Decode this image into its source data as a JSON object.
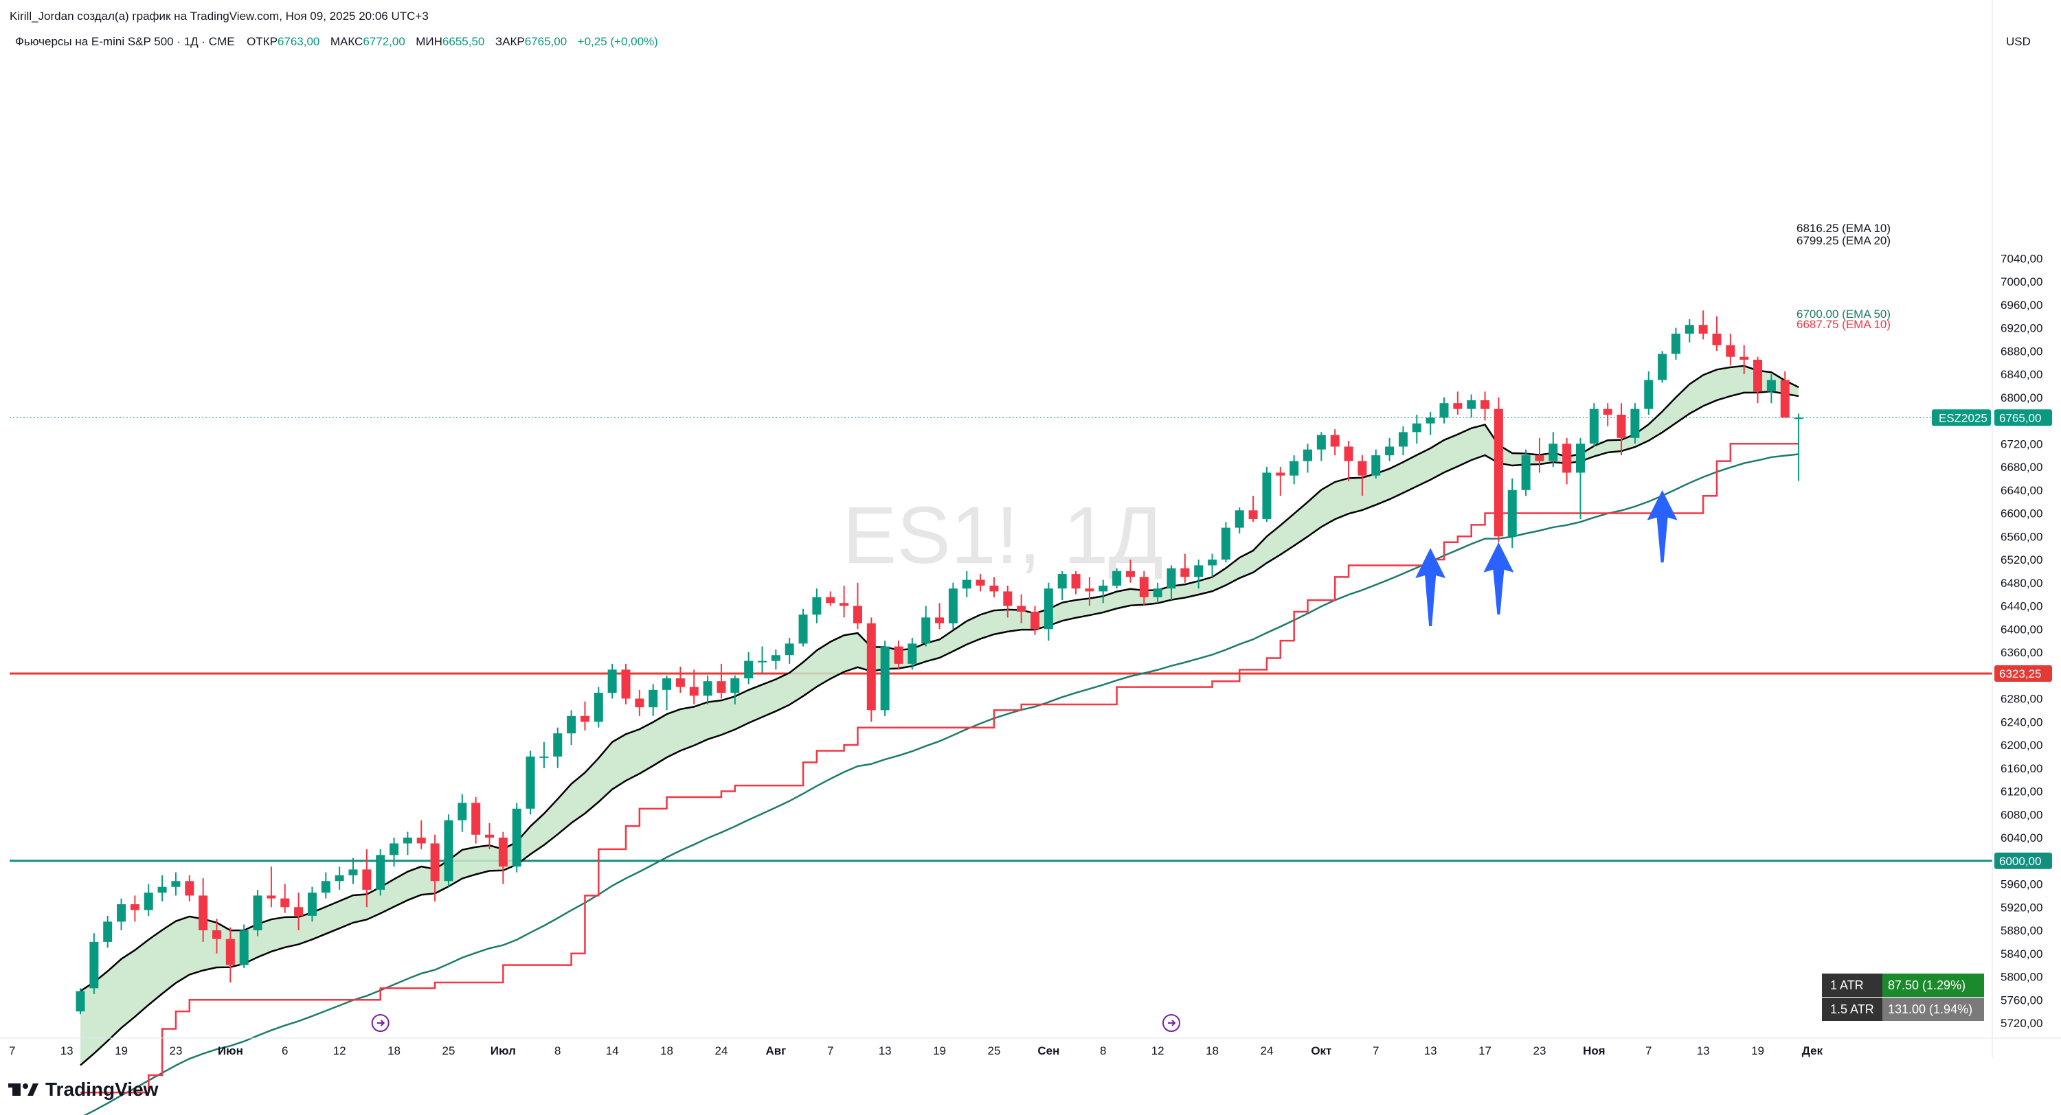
{
  "header": {
    "author_line": "Kirill_Jordan создал(а) график на TradingView.com, Ноя 09, 2025 20:06 UTC+3",
    "symbol_desc": "Фьючерсы на E-mini S&P 500 · 1Д · CME",
    "ohlc": [
      {
        "label": "ОТКР",
        "value": "6763,00"
      },
      {
        "label": "МАКС",
        "value": "6772,00"
      },
      {
        "label": "МИН",
        "value": "6655,50"
      },
      {
        "label": "ЗАКР",
        "value": "6765,00"
      }
    ],
    "change": "+0,25 (+0,00%)"
  },
  "watermark": "ES1!, 1Д",
  "brand": "TradingView",
  "currency": "USD",
  "colors": {
    "up": "#089981",
    "down": "#f23645",
    "ema10": "#000000",
    "ema20": "#000000",
    "ema50": "#1f7a6e",
    "stop": "#f23645",
    "cloud": "#c8e6c9",
    "level_red": "#e53935",
    "level_green": "#138f80",
    "arrow": "#2962ff",
    "event": "#7b1fa2"
  },
  "chart_data": {
    "type": "candlestick",
    "symbol": "ES1!",
    "interval": "1Д",
    "ylim": [
      5700,
      7060
    ],
    "y_ticks": [
      "7040,00",
      "7000,00",
      "6960,00",
      "6920,00",
      "6880,00",
      "6840,00",
      "6800,00",
      "6760,00",
      "6720,00",
      "6680,00",
      "6640,00",
      "6600,00",
      "6560,00",
      "6520,00",
      "6480,00",
      "6440,00",
      "6400,00",
      "6360,00",
      "6320,00",
      "6280,00",
      "6240,00",
      "6200,00",
      "6160,00",
      "6120,00",
      "6080,00",
      "6040,00",
      "6000,00",
      "5960,00",
      "5920,00",
      "5880,00",
      "5840,00",
      "5800,00",
      "5760,00",
      "5720,00"
    ],
    "x_ticks": [
      {
        "label": "7",
        "i": -5,
        "bold": false
      },
      {
        "label": "13",
        "i": -1,
        "bold": false
      },
      {
        "label": "19",
        "i": 3,
        "bold": false
      },
      {
        "label": "23",
        "i": 7,
        "bold": false
      },
      {
        "label": "Июн",
        "i": 11,
        "bold": true
      },
      {
        "label": "6",
        "i": 15,
        "bold": false
      },
      {
        "label": "12",
        "i": 19,
        "bold": false
      },
      {
        "label": "18",
        "i": 23,
        "bold": false
      },
      {
        "label": "25",
        "i": 27,
        "bold": false
      },
      {
        "label": "Июл",
        "i": 31,
        "bold": true
      },
      {
        "label": "8",
        "i": 35,
        "bold": false
      },
      {
        "label": "14",
        "i": 39,
        "bold": false
      },
      {
        "label": "18",
        "i": 43,
        "bold": false
      },
      {
        "label": "24",
        "i": 47,
        "bold": false
      },
      {
        "label": "Авг",
        "i": 51,
        "bold": true
      },
      {
        "label": "7",
        "i": 55,
        "bold": false
      },
      {
        "label": "13",
        "i": 59,
        "bold": false
      },
      {
        "label": "19",
        "i": 63,
        "bold": false
      },
      {
        "label": "25",
        "i": 67,
        "bold": false
      },
      {
        "label": "Сен",
        "i": 71,
        "bold": true
      },
      {
        "label": "8",
        "i": 75,
        "bold": false
      },
      {
        "label": "12",
        "i": 79,
        "bold": false
      },
      {
        "label": "18",
        "i": 83,
        "bold": false
      },
      {
        "label": "24",
        "i": 87,
        "bold": false
      },
      {
        "label": "Окт",
        "i": 91,
        "bold": true
      },
      {
        "label": "7",
        "i": 95,
        "bold": false
      },
      {
        "label": "13",
        "i": 99,
        "bold": false
      },
      {
        "label": "17",
        "i": 103,
        "bold": false
      },
      {
        "label": "23",
        "i": 107,
        "bold": false
      },
      {
        "label": "Ноя",
        "i": 111,
        "bold": true
      },
      {
        "label": "7",
        "i": 115,
        "bold": false
      },
      {
        "label": "13",
        "i": 119,
        "bold": false
      },
      {
        "label": "19",
        "i": 123,
        "bold": false
      },
      {
        "label": "Дек",
        "i": 127,
        "bold": true
      }
    ],
    "candles": [
      [
        5740,
        5780,
        5735,
        5775
      ],
      [
        5780,
        5875,
        5770,
        5860
      ],
      [
        5860,
        5905,
        5850,
        5895
      ],
      [
        5895,
        5935,
        5880,
        5925
      ],
      [
        5925,
        5940,
        5895,
        5915
      ],
      [
        5915,
        5960,
        5905,
        5945
      ],
      [
        5945,
        5975,
        5930,
        5955
      ],
      [
        5955,
        5980,
        5940,
        5965
      ],
      [
        5965,
        5975,
        5930,
        5940
      ],
      [
        5940,
        5970,
        5860,
        5880
      ],
      [
        5880,
        5900,
        5840,
        5865
      ],
      [
        5865,
        5885,
        5790,
        5820
      ],
      [
        5820,
        5890,
        5815,
        5880
      ],
      [
        5880,
        5950,
        5870,
        5940
      ],
      [
        5940,
        5990,
        5920,
        5935
      ],
      [
        5935,
        5960,
        5910,
        5920
      ],
      [
        5920,
        5945,
        5880,
        5905
      ],
      [
        5905,
        5955,
        5895,
        5945
      ],
      [
        5945,
        5980,
        5935,
        5965
      ],
      [
        5965,
        5990,
        5950,
        5975
      ],
      [
        5975,
        6005,
        5960,
        5985
      ],
      [
        5985,
        6020,
        5920,
        5950
      ],
      [
        5950,
        6020,
        5940,
        6010
      ],
      [
        6010,
        6040,
        5990,
        6030
      ],
      [
        6030,
        6050,
        6010,
        6040
      ],
      [
        6040,
        6070,
        6020,
        6030
      ],
      [
        6030,
        6045,
        5930,
        5965
      ],
      [
        5965,
        6080,
        5955,
        6070
      ],
      [
        6070,
        6115,
        6050,
        6100
      ],
      [
        6100,
        6110,
        6030,
        6045
      ],
      [
        6045,
        6065,
        6020,
        6040
      ],
      [
        6040,
        6050,
        5960,
        5990
      ],
      [
        5990,
        6100,
        5980,
        6090
      ],
      [
        6090,
        6190,
        6080,
        6180
      ],
      [
        6180,
        6205,
        6160,
        6180
      ],
      [
        6180,
        6230,
        6160,
        6220
      ],
      [
        6220,
        6260,
        6200,
        6250
      ],
      [
        6250,
        6275,
        6225,
        6240
      ],
      [
        6240,
        6300,
        6230,
        6290
      ],
      [
        6290,
        6340,
        6280,
        6330
      ],
      [
        6330,
        6340,
        6270,
        6280
      ],
      [
        6280,
        6295,
        6250,
        6265
      ],
      [
        6265,
        6305,
        6250,
        6295
      ],
      [
        6295,
        6320,
        6260,
        6315
      ],
      [
        6315,
        6335,
        6290,
        6300
      ],
      [
        6300,
        6330,
        6270,
        6285
      ],
      [
        6285,
        6320,
        6270,
        6310
      ],
      [
        6310,
        6340,
        6280,
        6290
      ],
      [
        6290,
        6320,
        6270,
        6315
      ],
      [
        6315,
        6360,
        6305,
        6345
      ],
      [
        6345,
        6370,
        6325,
        6345
      ],
      [
        6345,
        6365,
        6330,
        6355
      ],
      [
        6355,
        6385,
        6340,
        6375
      ],
      [
        6375,
        6435,
        6370,
        6425
      ],
      [
        6425,
        6470,
        6410,
        6455
      ],
      [
        6455,
        6465,
        6440,
        6445
      ],
      [
        6445,
        6475,
        6420,
        6440
      ],
      [
        6440,
        6480,
        6400,
        6410
      ],
      [
        6410,
        6420,
        6240,
        6260
      ],
      [
        6260,
        6380,
        6250,
        6370
      ],
      [
        6370,
        6380,
        6330,
        6340
      ],
      [
        6340,
        6385,
        6330,
        6375
      ],
      [
        6375,
        6440,
        6370,
        6420
      ],
      [
        6420,
        6445,
        6400,
        6410
      ],
      [
        6410,
        6480,
        6400,
        6470
      ],
      [
        6470,
        6500,
        6455,
        6485
      ],
      [
        6485,
        6495,
        6465,
        6475
      ],
      [
        6475,
        6490,
        6455,
        6465
      ],
      [
        6465,
        6475,
        6420,
        6440
      ],
      [
        6440,
        6460,
        6410,
        6430
      ],
      [
        6430,
        6440,
        6390,
        6400
      ],
      [
        6400,
        6480,
        6380,
        6470
      ],
      [
        6470,
        6500,
        6450,
        6495
      ],
      [
        6495,
        6500,
        6460,
        6470
      ],
      [
        6470,
        6490,
        6440,
        6465
      ],
      [
        6465,
        6485,
        6445,
        6475
      ],
      [
        6475,
        6505,
        6470,
        6500
      ],
      [
        6500,
        6520,
        6480,
        6490
      ],
      [
        6490,
        6500,
        6440,
        6455
      ],
      [
        6455,
        6480,
        6445,
        6470
      ],
      [
        6470,
        6510,
        6450,
        6505
      ],
      [
        6505,
        6530,
        6480,
        6490
      ],
      [
        6490,
        6520,
        6470,
        6510
      ],
      [
        6510,
        6530,
        6490,
        6520
      ],
      [
        6520,
        6585,
        6515,
        6575
      ],
      [
        6575,
        6610,
        6565,
        6605
      ],
      [
        6605,
        6630,
        6585,
        6590
      ],
      [
        6590,
        6680,
        6585,
        6670
      ],
      [
        6670,
        6680,
        6630,
        6665
      ],
      [
        6665,
        6700,
        6650,
        6690
      ],
      [
        6690,
        6720,
        6670,
        6710
      ],
      [
        6710,
        6740,
        6690,
        6735
      ],
      [
        6735,
        6745,
        6700,
        6715
      ],
      [
        6715,
        6725,
        6655,
        6690
      ],
      [
        6690,
        6700,
        6630,
        6665
      ],
      [
        6665,
        6710,
        6660,
        6700
      ],
      [
        6700,
        6730,
        6690,
        6715
      ],
      [
        6715,
        6750,
        6700,
        6740
      ],
      [
        6740,
        6770,
        6720,
        6755
      ],
      [
        6755,
        6775,
        6735,
        6765
      ],
      [
        6765,
        6800,
        6755,
        6790
      ],
      [
        6790,
        6810,
        6770,
        6780
      ],
      [
        6780,
        6805,
        6765,
        6795
      ],
      [
        6795,
        6810,
        6760,
        6780
      ],
      [
        6780,
        6800,
        6550,
        6560
      ],
      [
        6560,
        6660,
        6540,
        6640
      ],
      [
        6640,
        6710,
        6630,
        6700
      ],
      [
        6700,
        6730,
        6670,
        6690
      ],
      [
        6690,
        6740,
        6680,
        6720
      ],
      [
        6720,
        6730,
        6650,
        6670
      ],
      [
        6670,
        6730,
        6590,
        6720
      ],
      [
        6720,
        6790,
        6715,
        6780
      ],
      [
        6780,
        6790,
        6750,
        6770
      ],
      [
        6770,
        6790,
        6700,
        6730
      ],
      [
        6730,
        6790,
        6720,
        6780
      ],
      [
        6780,
        6845,
        6770,
        6830
      ],
      [
        6830,
        6880,
        6825,
        6875
      ],
      [
        6875,
        6920,
        6865,
        6910
      ],
      [
        6910,
        6935,
        6895,
        6925
      ],
      [
        6925,
        6950,
        6900,
        6910
      ],
      [
        6910,
        6940,
        6880,
        6890
      ],
      [
        6890,
        6910,
        6855,
        6870
      ],
      [
        6870,
        6890,
        6840,
        6865
      ],
      [
        6865,
        6870,
        6790,
        6810
      ],
      [
        6810,
        6840,
        6790,
        6830
      ],
      [
        6830,
        6845,
        6770,
        6765
      ],
      [
        6763,
        6772,
        6655.5,
        6765
      ]
    ],
    "indicators": [
      {
        "name": "EMA 10",
        "label": "6816.25 (EMA 10)",
        "last": 6816.25
      },
      {
        "name": "EMA 20",
        "label": "6799.25 (EMA 20)",
        "last": 6799.25
      },
      {
        "name": "EMA 50",
        "label": "6700.00 (EMA 50)",
        "last": 6700.0
      },
      {
        "name": "EMA 10",
        "label": "6687.75 (EMA 10)",
        "last": 6687.75
      }
    ],
    "last_price": {
      "label": "ESZ2025",
      "value": "6765,00",
      "price": 6765
    },
    "horizontal_levels": [
      {
        "price": 6323.25,
        "label": "6323,25",
        "color": "#e53935"
      },
      {
        "price": 6000,
        "label": "6000,00",
        "color": "#138f80"
      }
    ],
    "arrows": [
      {
        "i": 99,
        "tip": 6540,
        "tail": 6405
      },
      {
        "i": 104,
        "tip": 6550,
        "tail": 6425
      },
      {
        "i": 116,
        "tip": 6640,
        "tail": 6515
      }
    ],
    "event_markers": [
      {
        "i": 22
      },
      {
        "i": 80
      }
    ],
    "atr": [
      {
        "label": "1 ATR",
        "value": "87.50 (1.29%)"
      },
      {
        "label": "1.5 ATR",
        "value": "131.00 (1.94%)"
      }
    ]
  }
}
